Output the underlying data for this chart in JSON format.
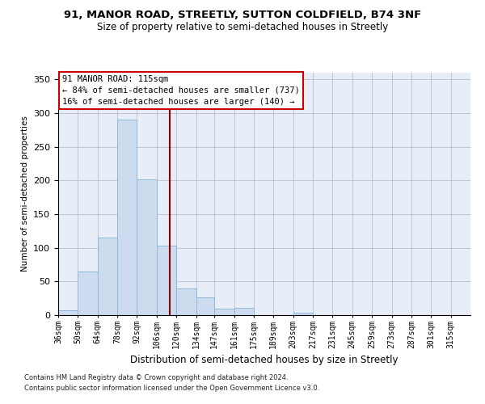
{
  "title1": "91, MANOR ROAD, STREETLY, SUTTON COLDFIELD, B74 3NF",
  "title2": "Size of property relative to semi-detached houses in Streetly",
  "xlabel": "Distribution of semi-detached houses by size in Streetly",
  "ylabel": "Number of semi-detached properties",
  "footnote1": "Contains HM Land Registry data © Crown copyright and database right 2024.",
  "footnote2": "Contains public sector information licensed under the Open Government Licence v3.0.",
  "annotation_line1": "91 MANOR ROAD: 115sqm",
  "annotation_line2": "← 84% of semi-detached houses are smaller (737)",
  "annotation_line3": "16% of semi-detached houses are larger (140) →",
  "property_size": 115,
  "bar_color": "#ccdcee",
  "bar_edge_color": "#90b8d8",
  "vline_color": "#8b0000",
  "background_color": "#e8eef8",
  "grid_color": "#bbbbcc",
  "categories": [
    "36sqm",
    "50sqm",
    "64sqm",
    "78sqm",
    "92sqm",
    "106sqm",
    "120sqm",
    "134sqm",
    "147sqm",
    "161sqm",
    "175sqm",
    "189sqm",
    "203sqm",
    "217sqm",
    "231sqm",
    "245sqm",
    "259sqm",
    "273sqm",
    "287sqm",
    "301sqm",
    "315sqm"
  ],
  "bin_edges": [
    36,
    50,
    64,
    78,
    92,
    106,
    120,
    134,
    147,
    161,
    175,
    189,
    203,
    217,
    231,
    245,
    259,
    273,
    287,
    301,
    315,
    329
  ],
  "values": [
    7,
    65,
    115,
    291,
    202,
    103,
    40,
    27,
    10,
    11,
    0,
    0,
    4,
    0,
    0,
    0,
    0,
    0,
    0,
    0,
    0
  ],
  "ylim": [
    0,
    360
  ],
  "yticks": [
    0,
    50,
    100,
    150,
    200,
    250,
    300,
    350
  ]
}
